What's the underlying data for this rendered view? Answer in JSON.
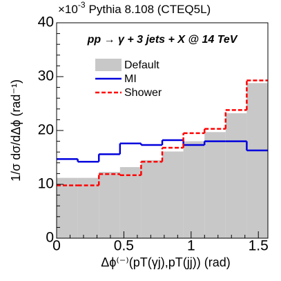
{
  "chart_data": {
    "type": "histogram",
    "multiplier": "×10",
    "exponent": "-3",
    "title": "Pythia 8.108 (CTEQ5L)",
    "annotation": "pp → γ + 3 jets + X @ 14 TeV",
    "x_label": "Δϕ⁽⁻⁾(pT(γj),pT(jj)) (rad)",
    "y_label": "1/σ dσ/dΔϕ (rad⁻¹)",
    "bins": [
      0,
      0.15708,
      0.31416,
      0.47124,
      0.62832,
      0.7854,
      0.94248,
      1.09956,
      1.25664,
      1.41372,
      1.5708
    ],
    "series": [
      {
        "name": "Default",
        "color": "#c8c8c8",
        "style": "fill",
        "values": [
          11.2,
          11.2,
          12.3,
          13.2,
          14.5,
          16.1,
          18.0,
          19.7,
          23.2,
          28.8
        ]
      },
      {
        "name": "MI",
        "color": "#0000dd",
        "style": "solid",
        "values": [
          14.7,
          14.2,
          15.6,
          17.6,
          17.3,
          18.2,
          17.3,
          18.0,
          18.0,
          16.3
        ]
      },
      {
        "name": "Shower",
        "color": "#ff0000",
        "style": "dashed",
        "values": [
          9.8,
          9.8,
          11.9,
          11.7,
          14.2,
          16.8,
          19.5,
          20.3,
          23.8,
          29.3
        ]
      }
    ],
    "xlim": [
      0,
      1.5708
    ],
    "ylim": [
      0,
      40
    ],
    "xticks": [
      0,
      0.5,
      1,
      1.5
    ],
    "yticks": [
      0,
      10,
      20,
      30,
      40
    ]
  }
}
